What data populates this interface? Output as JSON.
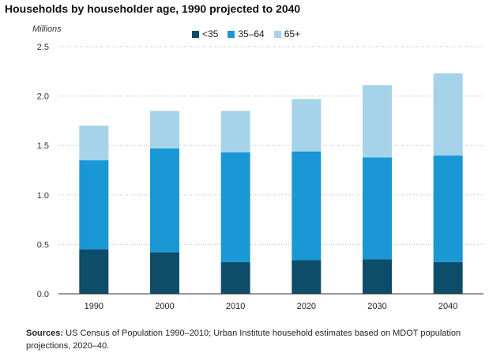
{
  "title": "Households by householder age, 1990 projected to 2040",
  "source_label": "Sources:",
  "source_text": "US Census of Population 1990–2010; Urban Institute household estimates based on MDOT population projections, 2020–40.",
  "colors": {
    "under35": "#0e4d6a",
    "age35to64": "#1a97d5",
    "age65plus": "#a5d4ea",
    "grid": "#bfbfbf",
    "axis": "#333333"
  },
  "chart_data": {
    "type": "bar",
    "stacked": true,
    "categories": [
      "1990",
      "2000",
      "2010",
      "2020",
      "2030",
      "2040"
    ],
    "series": [
      {
        "name": "<35",
        "values": [
          0.45,
          0.42,
          0.32,
          0.34,
          0.35,
          0.32
        ]
      },
      {
        "name": "35–64",
        "values": [
          0.9,
          1.05,
          1.11,
          1.1,
          1.03,
          1.08
        ]
      },
      {
        "name": "65+",
        "values": [
          0.35,
          0.38,
          0.42,
          0.53,
          0.73,
          0.83
        ]
      }
    ],
    "ylabel": "Millions",
    "yticks": [
      "0.0",
      "0.5",
      "1.0",
      "1.5",
      "2.0",
      "2.5"
    ],
    "ylim": [
      0,
      2.5
    ],
    "grid": true,
    "legend_position": "top"
  }
}
